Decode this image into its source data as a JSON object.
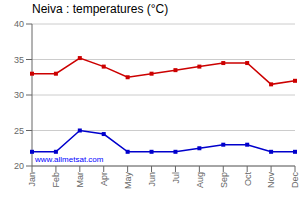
{
  "chart_data": {
    "type": "line",
    "title": "Neiva : temperatures (°C)",
    "categories": [
      "Jan",
      "Feb",
      "Mar",
      "Apr",
      "May",
      "Jun",
      "Jul",
      "Aug",
      "Sep",
      "Oct",
      "Nov",
      "Dec"
    ],
    "series": [
      {
        "color": "#cc0000",
        "marker": "square",
        "values": [
          33.0,
          33.0,
          35.2,
          34.0,
          32.5,
          33.0,
          33.5,
          34.0,
          34.5,
          34.5,
          31.5,
          32.0
        ]
      },
      {
        "color": "#0000cc",
        "marker": "square",
        "values": [
          22.0,
          22.0,
          25.0,
          24.5,
          22.0,
          22.0,
          22.0,
          22.5,
          23.0,
          23.0,
          22.0,
          22.0
        ]
      }
    ],
    "ylim": [
      20,
      40
    ],
    "yticks": [
      20,
      25,
      30,
      35,
      40
    ],
    "grid": true,
    "annotations": [
      {
        "text": "www.allmetsat.com",
        "color": "#0000ff"
      }
    ]
  }
}
